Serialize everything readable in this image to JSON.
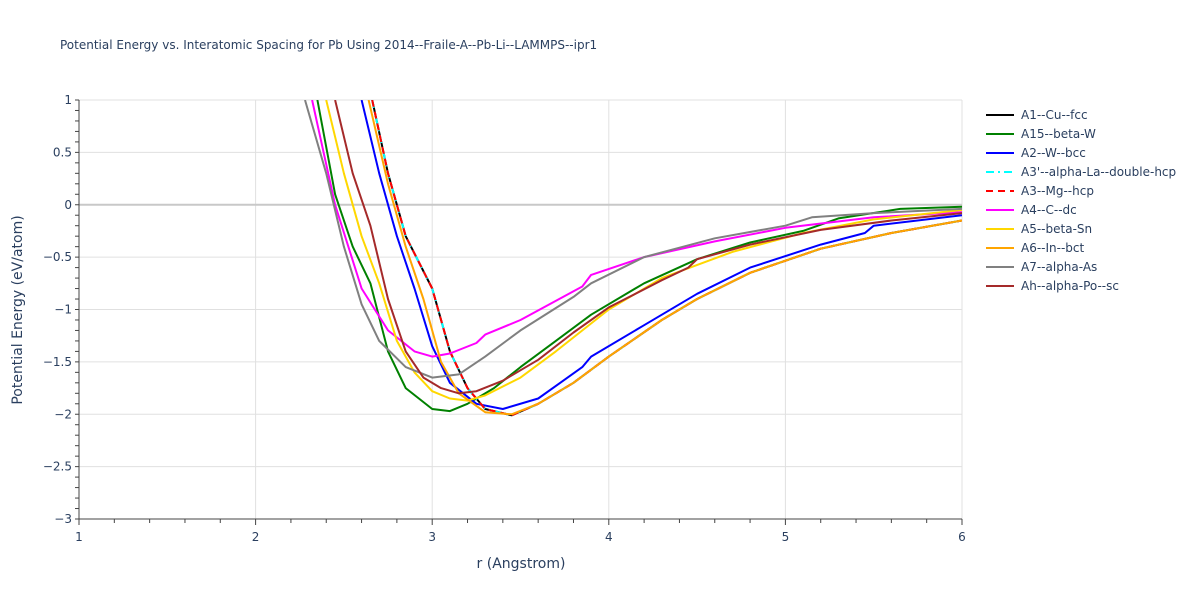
{
  "chart_data": {
    "type": "line",
    "title": "Potential Energy vs. Interatomic Spacing for Pb Using 2014--Fraile-A--Pb-Li--LAMMPS--ipr1",
    "xlabel": "r (Angstrom)",
    "ylabel": "Potential Energy (eV/atom)",
    "xlim": [
      1,
      6
    ],
    "ylim": [
      -3,
      1
    ],
    "x_ticks": [
      "1",
      "2",
      "3",
      "4",
      "5",
      "6"
    ],
    "y_ticks": [
      "1",
      "0.5",
      "0",
      "−0.5",
      "−1",
      "−1.5",
      "−2",
      "−2.5",
      "−3"
    ],
    "grid": true,
    "legend_position": "right",
    "series": [
      {
        "name": "A1--Cu--fcc",
        "color": "#000000",
        "dash": "solid",
        "x": [
          2.66,
          2.75,
          2.85,
          3.0,
          3.1,
          3.2,
          3.3,
          3.45,
          3.6,
          3.8,
          4.0,
          4.3,
          4.5,
          4.8,
          5.2,
          5.6,
          6.0
        ],
        "y": [
          1.0,
          0.3,
          -0.3,
          -0.8,
          -1.4,
          -1.75,
          -1.95,
          -2.01,
          -1.9,
          -1.7,
          -1.45,
          -1.1,
          -0.9,
          -0.65,
          -0.42,
          -0.27,
          -0.15
        ]
      },
      {
        "name": "A15--beta-W",
        "color": "#008000",
        "dash": "solid",
        "x": [
          2.35,
          2.45,
          2.55,
          2.65,
          2.75,
          2.85,
          3.0,
          3.1,
          3.2,
          3.35,
          3.5,
          3.7,
          3.9,
          4.2,
          4.5,
          4.8,
          5.1,
          5.3,
          5.65,
          6.0
        ],
        "y": [
          1.0,
          0.1,
          -0.4,
          -0.75,
          -1.4,
          -1.75,
          -1.95,
          -1.97,
          -1.9,
          -1.75,
          -1.55,
          -1.3,
          -1.05,
          -0.75,
          -0.52,
          -0.36,
          -0.25,
          -0.13,
          -0.04,
          -0.02
        ]
      },
      {
        "name": "A2--W--bcc",
        "color": "#0000ff",
        "dash": "solid",
        "x": [
          2.6,
          2.7,
          2.8,
          2.9,
          3.0,
          3.1,
          3.25,
          3.4,
          3.6,
          3.85,
          3.9,
          4.2,
          4.5,
          4.8,
          5.2,
          5.45,
          5.5,
          6.0
        ],
        "y": [
          1.0,
          0.3,
          -0.3,
          -0.8,
          -1.35,
          -1.7,
          -1.9,
          -1.95,
          -1.85,
          -1.55,
          -1.45,
          -1.15,
          -0.85,
          -0.6,
          -0.38,
          -0.27,
          -0.2,
          -0.1
        ]
      },
      {
        "name": "A3'--alpha-La--double-hcp",
        "color": "#00ffff",
        "dash": "dashdot",
        "x": [
          2.66,
          2.75,
          2.85,
          3.0,
          3.1,
          3.2,
          3.3,
          3.45,
          3.6,
          3.8,
          4.0,
          4.3,
          4.5,
          4.8,
          5.2,
          5.6,
          6.0
        ],
        "y": [
          1.0,
          0.3,
          -0.3,
          -0.8,
          -1.4,
          -1.75,
          -1.95,
          -2.01,
          -1.9,
          -1.7,
          -1.45,
          -1.1,
          -0.9,
          -0.65,
          -0.42,
          -0.27,
          -0.15
        ]
      },
      {
        "name": "A3--Mg--hcp",
        "color": "#ff0000",
        "dash": "dash",
        "x": [
          2.66,
          2.75,
          2.85,
          3.0,
          3.1,
          3.2,
          3.3,
          3.45,
          3.6,
          3.8,
          4.0,
          4.3,
          4.5,
          4.8,
          5.2,
          5.6,
          6.0
        ],
        "y": [
          1.0,
          0.3,
          -0.3,
          -0.8,
          -1.4,
          -1.75,
          -1.95,
          -2.01,
          -1.9,
          -1.7,
          -1.45,
          -1.1,
          -0.9,
          -0.65,
          -0.42,
          -0.27,
          -0.15
        ]
      },
      {
        "name": "A4--C--dc",
        "color": "#ff00ff",
        "dash": "solid",
        "x": [
          2.32,
          2.45,
          2.6,
          2.75,
          2.9,
          3.0,
          3.1,
          3.25,
          3.3,
          3.5,
          3.85,
          3.9,
          4.2,
          4.6,
          5.0,
          5.5,
          6.0
        ],
        "y": [
          1.0,
          0.0,
          -0.8,
          -1.2,
          -1.4,
          -1.45,
          -1.42,
          -1.32,
          -1.24,
          -1.1,
          -0.78,
          -0.67,
          -0.5,
          -0.35,
          -0.22,
          -0.12,
          -0.07
        ]
      },
      {
        "name": "A5--beta-Sn",
        "color": "#ffd700",
        "dash": "solid",
        "x": [
          2.4,
          2.5,
          2.6,
          2.7,
          2.8,
          2.9,
          3.0,
          3.1,
          3.2,
          3.3,
          3.5,
          3.7,
          4.0,
          4.3,
          4.7,
          5.1,
          5.5,
          6.0
        ],
        "y": [
          1.0,
          0.3,
          -0.3,
          -0.75,
          -1.3,
          -1.6,
          -1.78,
          -1.85,
          -1.87,
          -1.82,
          -1.65,
          -1.4,
          -1.0,
          -0.7,
          -0.45,
          -0.27,
          -0.14,
          -0.05
        ]
      },
      {
        "name": "A6--In--bct",
        "color": "#ffa500",
        "dash": "solid",
        "x": [
          2.64,
          2.75,
          2.85,
          2.95,
          3.05,
          3.15,
          3.3,
          3.45,
          3.6,
          3.8,
          4.0,
          4.3,
          4.5,
          4.8,
          5.2,
          5.6,
          6.0
        ],
        "y": [
          1.0,
          0.2,
          -0.4,
          -0.9,
          -1.5,
          -1.8,
          -1.98,
          -2.0,
          -1.9,
          -1.7,
          -1.45,
          -1.1,
          -0.9,
          -0.65,
          -0.42,
          -0.27,
          -0.15
        ]
      },
      {
        "name": "A7--alpha-As",
        "color": "#808080",
        "dash": "solid",
        "x": [
          2.28,
          2.4,
          2.5,
          2.6,
          2.7,
          2.85,
          3.0,
          3.15,
          3.3,
          3.5,
          3.8,
          3.9,
          4.2,
          4.6,
          5.0,
          5.15,
          5.5,
          6.0
        ],
        "y": [
          1.0,
          0.3,
          -0.4,
          -0.95,
          -1.3,
          -1.55,
          -1.65,
          -1.62,
          -1.45,
          -1.2,
          -0.88,
          -0.75,
          -0.5,
          -0.32,
          -0.2,
          -0.12,
          -0.08,
          -0.04
        ]
      },
      {
        "name": "Ah--alpha-Po--sc",
        "color": "#a52a2a",
        "dash": "solid",
        "x": [
          2.45,
          2.55,
          2.65,
          2.75,
          2.85,
          2.95,
          3.05,
          3.15,
          3.25,
          3.4,
          3.6,
          3.8,
          4.0,
          4.3,
          4.45,
          4.5,
          4.8,
          5.2,
          5.6,
          6.0
        ],
        "y": [
          1.0,
          0.3,
          -0.2,
          -0.9,
          -1.4,
          -1.65,
          -1.75,
          -1.8,
          -1.78,
          -1.68,
          -1.48,
          -1.22,
          -0.98,
          -0.72,
          -0.6,
          -0.52,
          -0.38,
          -0.24,
          -0.15,
          -0.08
        ]
      }
    ]
  }
}
